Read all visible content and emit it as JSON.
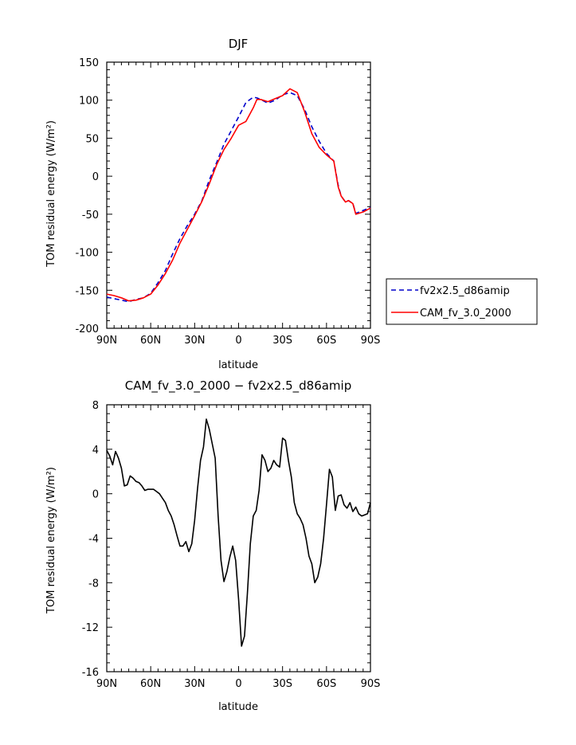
{
  "chart_data": [
    {
      "type": "line",
      "title": "DJF",
      "xlabel": "latitude",
      "ylabel": "TOM residual energy (W/m²)",
      "xlim": [
        90,
        -90
      ],
      "ylim": [
        -200,
        150
      ],
      "x_ticks": [
        "90N",
        "60N",
        "30N",
        "0",
        "30S",
        "60S",
        "90S"
      ],
      "y_ticks": [
        "150",
        "100",
        "50",
        "0",
        "-50",
        "-100",
        "-150",
        "-200"
      ],
      "legend": {
        "position": "right",
        "entries": [
          "fv2x2.5_d86amip",
          "CAM_fv_3.0_2000"
        ]
      },
      "series": [
        {
          "name": "fv2x2.5_d86amip",
          "color": "#0000cc",
          "style": "dashed",
          "x": [
            90,
            85,
            80,
            75,
            70,
            65,
            60,
            55,
            50,
            45,
            40,
            35,
            30,
            25,
            20,
            15,
            10,
            5,
            0,
            -5,
            -10,
            -12.5,
            -15,
            -20,
            -25,
            -30,
            -35,
            -40,
            -45,
            -50,
            -55,
            -60,
            -65,
            -68,
            -70,
            -73,
            -75,
            -78,
            -80,
            -85,
            -90
          ],
          "y": [
            -159,
            -161,
            -163,
            -165,
            -162,
            -160,
            -154,
            -140,
            -124,
            -102,
            -82,
            -65,
            -50,
            -32,
            -5,
            18,
            42,
            60,
            78,
            97,
            104,
            103,
            101,
            96,
            100,
            107,
            110,
            106,
            88,
            65,
            46,
            30,
            20,
            -12,
            -26,
            -34,
            -32,
            -36,
            -49,
            -45,
            -41
          ]
        },
        {
          "name": "CAM_fv_3.0_2000",
          "color": "#ff0000",
          "style": "solid",
          "x": [
            90,
            85,
            80,
            75,
            70,
            65,
            60,
            55,
            50,
            45,
            40,
            35,
            30,
            25,
            20,
            15,
            10,
            5,
            0,
            -5,
            -10,
            -12.5,
            -15,
            -20,
            -25,
            -30,
            -35,
            -40,
            -45,
            -50,
            -55,
            -60,
            -65,
            -68,
            -70,
            -73,
            -75,
            -78,
            -80,
            -85,
            -90
          ],
          "y": [
            -155,
            -157,
            -160,
            -164,
            -163,
            -160,
            -155,
            -143,
            -128,
            -110,
            -88,
            -70,
            -52,
            -33,
            -10,
            15,
            35,
            50,
            67,
            72,
            90,
            101,
            101,
            98,
            102,
            106,
            115,
            110,
            85,
            56,
            38,
            28,
            20,
            -14,
            -26,
            -34,
            -32,
            -36,
            -50,
            -47,
            -42
          ]
        }
      ]
    },
    {
      "type": "line",
      "title": "CAM_fv_3.0_2000 − fv2x2.5_d86amip",
      "xlabel": "latitude",
      "ylabel": "TOM residual energy (W/m²)",
      "xlim": [
        90,
        -90
      ],
      "ylim": [
        -16,
        8
      ],
      "x_ticks": [
        "90N",
        "60N",
        "30N",
        "0",
        "30S",
        "60S",
        "90S"
      ],
      "y_ticks": [
        "8",
        "4",
        "0",
        "-4",
        "-8",
        "-12",
        "-16"
      ],
      "series": [
        {
          "color": "#000000",
          "style": "solid",
          "x": [
            90,
            88,
            86,
            84,
            82,
            80,
            78,
            76,
            74,
            72,
            70,
            68,
            66,
            64,
            62,
            60,
            58,
            56,
            54,
            52,
            50,
            48,
            46,
            44,
            42,
            40,
            38,
            36,
            34,
            32,
            30,
            28,
            26,
            24,
            22,
            20,
            18,
            16,
            14,
            12,
            10,
            8,
            6,
            4,
            2,
            0,
            -2,
            -4,
            -6,
            -8,
            -10,
            -12,
            -14,
            -16,
            -18,
            -20,
            -22,
            -24,
            -26,
            -28,
            -30,
            -32,
            -34,
            -36,
            -38,
            -40,
            -42,
            -44,
            -46,
            -48,
            -50,
            -52,
            -54,
            -56,
            -58,
            -60,
            -62,
            -64,
            -66,
            -68,
            -70,
            -72,
            -74,
            -76,
            -78,
            -80,
            -82,
            -84,
            -86,
            -88,
            -90
          ],
          "y": [
            3.9,
            3.4,
            2.6,
            3.8,
            3.2,
            2.3,
            0.7,
            0.8,
            1.6,
            1.4,
            1.1,
            1.0,
            0.7,
            0.3,
            0.4,
            0.4,
            0.4,
            0.2,
            0.0,
            -0.4,
            -0.8,
            -1.5,
            -2.0,
            -2.8,
            -3.8,
            -4.7,
            -4.7,
            -4.3,
            -5.2,
            -4.5,
            -2.4,
            0.5,
            3.0,
            4.2,
            6.7,
            5.8,
            4.5,
            3.2,
            -2.0,
            -6.0,
            -7.9,
            -7.0,
            -5.7,
            -4.7,
            -6.0,
            -9.5,
            -13.7,
            -12.8,
            -9.0,
            -4.5,
            -2.0,
            -1.5,
            0.3,
            3.5,
            3.0,
            2.0,
            2.3,
            3.0,
            2.6,
            2.4,
            5.0,
            4.8,
            3.0,
            1.5,
            -0.8,
            -1.8,
            -2.2,
            -2.8,
            -4.0,
            -5.6,
            -6.3,
            -8.0,
            -7.5,
            -6.3,
            -4.0,
            -1.0,
            2.2,
            1.5,
            -1.5,
            -0.2,
            -0.1,
            -1.0,
            -1.3,
            -0.8,
            -1.6,
            -1.2,
            -1.8,
            -2.0,
            -1.9,
            -1.8,
            -0.8
          ]
        }
      ]
    }
  ]
}
